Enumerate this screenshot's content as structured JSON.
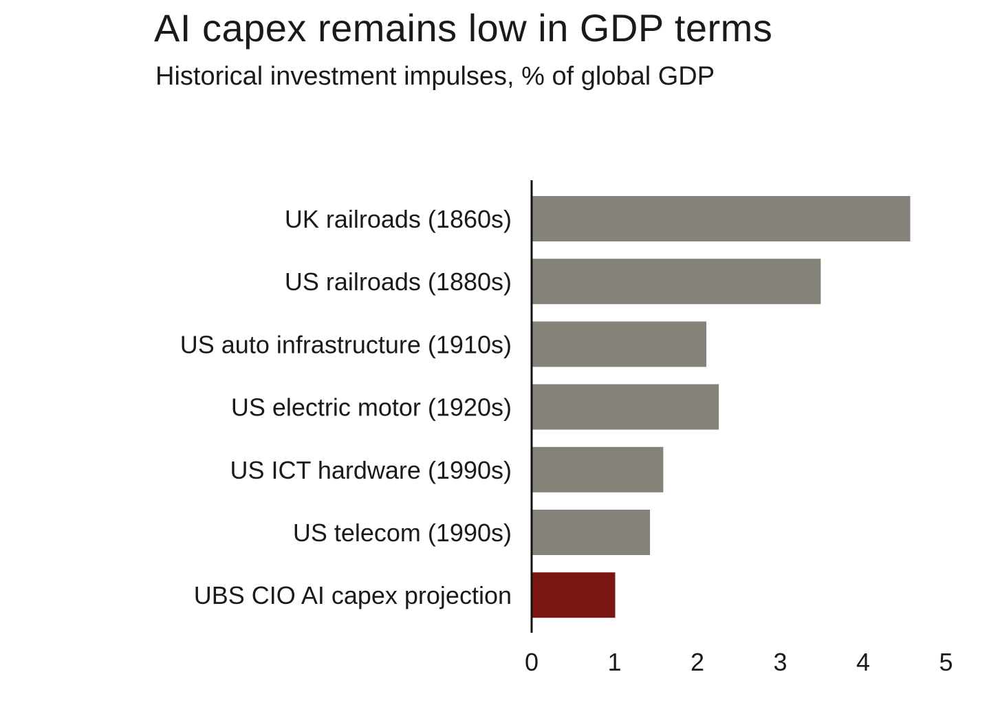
{
  "chart_data": {
    "type": "bar",
    "orientation": "horizontal",
    "title": "AI capex remains low in GDP terms",
    "subtitle": "Historical investment impulses, % of global GDP",
    "categories": [
      "UK railroads (1860s)",
      "US railroads (1880s)",
      "US auto infrastructure (1910s)",
      "US electric motor (1920s)",
      "US ICT hardware (1990s)",
      "US telecom (1990s)",
      "UBS CIO AI capex projection"
    ],
    "values": [
      4.56,
      3.48,
      2.1,
      2.25,
      1.58,
      1.42,
      1.0
    ],
    "colors": [
      "#858279",
      "#858279",
      "#858279",
      "#858279",
      "#858279",
      "#858279",
      "#7b1712"
    ],
    "xlabel": "",
    "ylabel": "",
    "xlim": [
      0,
      5
    ],
    "xticks": [
      "0",
      "1",
      "2",
      "3",
      "4",
      "5"
    ],
    "grid": false,
    "legend": "none"
  }
}
